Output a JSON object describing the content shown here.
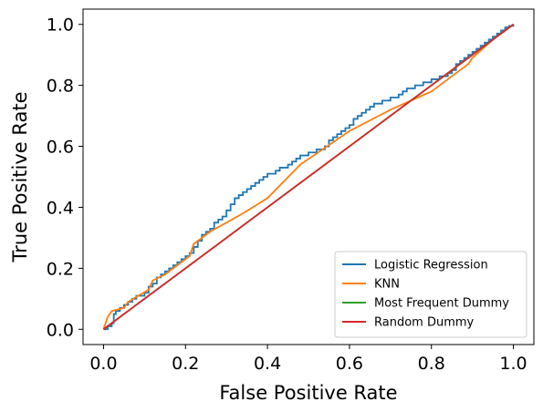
{
  "chart_data": {
    "type": "line",
    "title": "",
    "xlabel": "False Positive Rate",
    "ylabel": "True Positive Rate",
    "xlim": [
      -0.05,
      1.05
    ],
    "ylim": [
      -0.05,
      1.05
    ],
    "xticks": [
      0.0,
      0.2,
      0.4,
      0.6,
      0.8,
      1.0
    ],
    "yticks": [
      0.0,
      0.2,
      0.4,
      0.6,
      0.8,
      1.0
    ],
    "xtick_labels": [
      "0.0",
      "0.2",
      "0.4",
      "0.6",
      "0.8",
      "1.0"
    ],
    "ytick_labels": [
      "0.0",
      "0.2",
      "0.4",
      "0.6",
      "0.8",
      "1.0"
    ],
    "grid": false,
    "legend_position": "lower-right",
    "series": [
      {
        "name": "Logistic Regression",
        "color": "#1f77b4",
        "step": true,
        "x": [
          0.0,
          0.01,
          0.02,
          0.025,
          0.03,
          0.04,
          0.05,
          0.06,
          0.07,
          0.08,
          0.09,
          0.1,
          0.11,
          0.12,
          0.13,
          0.14,
          0.15,
          0.16,
          0.17,
          0.18,
          0.19,
          0.2,
          0.21,
          0.22,
          0.23,
          0.24,
          0.25,
          0.26,
          0.27,
          0.28,
          0.29,
          0.3,
          0.31,
          0.32,
          0.33,
          0.34,
          0.35,
          0.36,
          0.37,
          0.38,
          0.39,
          0.4,
          0.41,
          0.42,
          0.43,
          0.44,
          0.45,
          0.46,
          0.47,
          0.48,
          0.5,
          0.52,
          0.54,
          0.55,
          0.56,
          0.57,
          0.58,
          0.59,
          0.6,
          0.61,
          0.62,
          0.63,
          0.64,
          0.65,
          0.66,
          0.68,
          0.7,
          0.72,
          0.73,
          0.74,
          0.76,
          0.78,
          0.8,
          0.82,
          0.84,
          0.85,
          0.86,
          0.87,
          0.88,
          0.89,
          0.9,
          0.91,
          0.92,
          0.93,
          0.94,
          0.95,
          0.96,
          0.97,
          0.98,
          0.99,
          1.0
        ],
        "y": [
          0.0,
          0.01,
          0.02,
          0.05,
          0.06,
          0.07,
          0.08,
          0.09,
          0.1,
          0.11,
          0.11,
          0.12,
          0.14,
          0.15,
          0.17,
          0.18,
          0.19,
          0.2,
          0.21,
          0.22,
          0.23,
          0.24,
          0.25,
          0.27,
          0.29,
          0.31,
          0.32,
          0.33,
          0.35,
          0.36,
          0.37,
          0.39,
          0.41,
          0.43,
          0.44,
          0.45,
          0.46,
          0.47,
          0.48,
          0.49,
          0.5,
          0.51,
          0.51,
          0.52,
          0.53,
          0.53,
          0.54,
          0.55,
          0.56,
          0.57,
          0.58,
          0.59,
          0.6,
          0.62,
          0.63,
          0.64,
          0.65,
          0.66,
          0.67,
          0.69,
          0.7,
          0.71,
          0.72,
          0.73,
          0.74,
          0.75,
          0.76,
          0.77,
          0.78,
          0.79,
          0.8,
          0.81,
          0.82,
          0.83,
          0.84,
          0.85,
          0.87,
          0.88,
          0.89,
          0.9,
          0.91,
          0.92,
          0.93,
          0.94,
          0.95,
          0.96,
          0.97,
          0.98,
          0.99,
          0.995,
          1.0
        ]
      },
      {
        "name": "KNN",
        "color": "#ff7f0e",
        "step": false,
        "x": [
          0.0,
          0.01,
          0.02,
          0.05,
          0.06,
          0.11,
          0.12,
          0.15,
          0.18,
          0.21,
          0.22,
          0.26,
          0.3,
          0.34,
          0.4,
          0.48,
          0.6,
          0.7,
          0.8,
          0.89,
          0.9,
          0.95,
          1.0
        ],
        "y": [
          0.0,
          0.04,
          0.06,
          0.07,
          0.09,
          0.13,
          0.16,
          0.18,
          0.21,
          0.24,
          0.28,
          0.32,
          0.35,
          0.38,
          0.43,
          0.54,
          0.65,
          0.72,
          0.78,
          0.87,
          0.89,
          0.95,
          1.0
        ]
      },
      {
        "name": "Most Frequent Dummy",
        "color": "#2ca02c",
        "step": false,
        "x": [
          0.0,
          1.0
        ],
        "y": [
          0.0,
          1.0
        ]
      },
      {
        "name": "Random Dummy",
        "color": "#d62728",
        "step": false,
        "x": [
          0.0,
          1.0
        ],
        "y": [
          0.0,
          1.0
        ]
      }
    ]
  }
}
